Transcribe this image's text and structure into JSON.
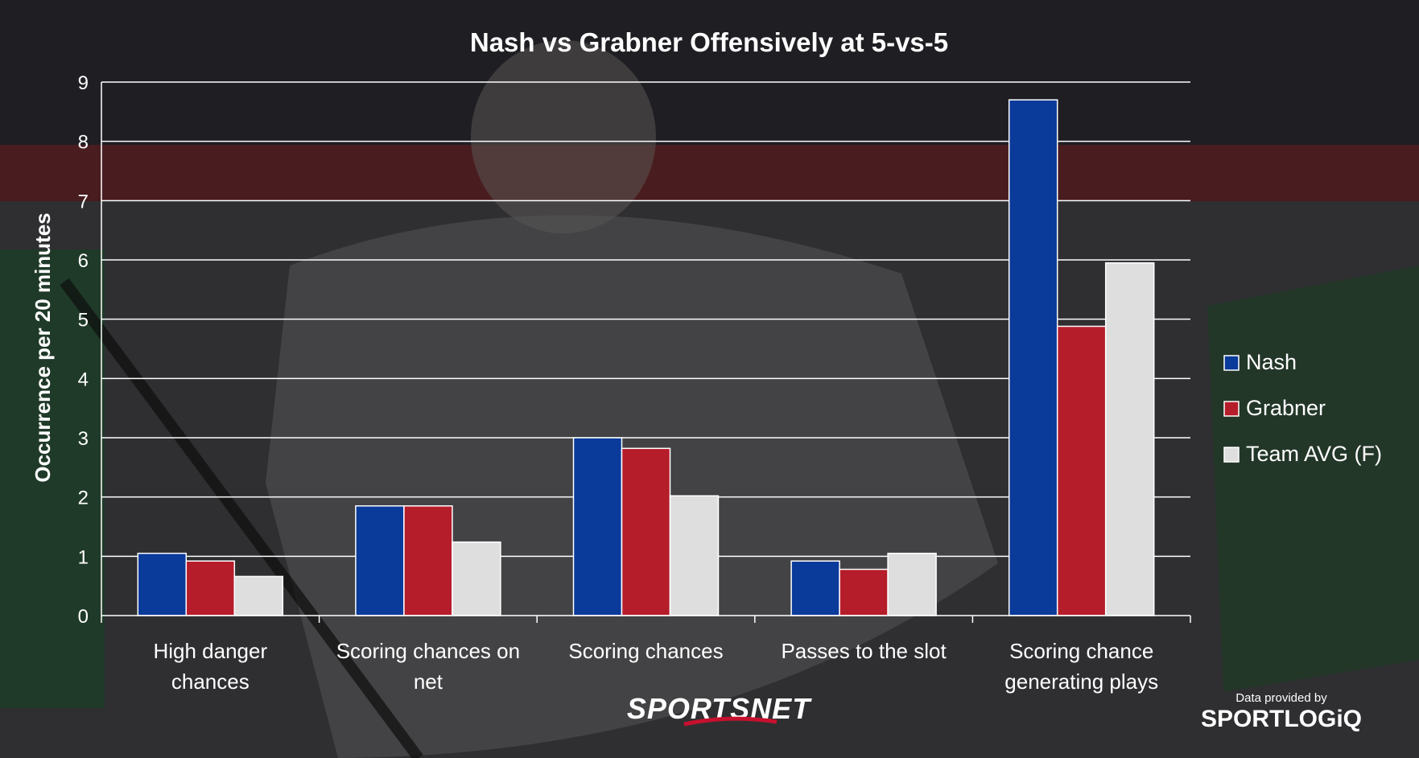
{
  "colors": {
    "nash": "#0a3a9a",
    "grabner": "#b51d2b",
    "team_avg": "#dedede",
    "grid": "#ffffff",
    "text": "#ffffff"
  },
  "branding": {
    "broadcaster": "SPORTSNET",
    "data_credit": "Data provided by",
    "data_provider": "SPORTLOGiQ"
  },
  "chart_data": {
    "type": "bar",
    "title": "Nash vs Grabner Offensively at 5-vs-5",
    "xlabel": "",
    "ylabel": "Occurrence per 20 minutes",
    "ylim": [
      0,
      9
    ],
    "yticks": [
      0,
      1,
      2,
      3,
      4,
      5,
      6,
      7,
      8,
      9
    ],
    "grid": true,
    "legend_position": "right",
    "categories": [
      [
        "High danger",
        "chances"
      ],
      [
        "Scoring chances on",
        "net"
      ],
      [
        "Scoring chances"
      ],
      [
        "Passes to the slot"
      ],
      [
        "Scoring chance",
        "generating plays"
      ]
    ],
    "series": [
      {
        "name": "Nash",
        "color": "#0a3a9a",
        "values": [
          1.05,
          1.85,
          3.0,
          0.92,
          8.7
        ]
      },
      {
        "name": "Grabner",
        "color": "#b51d2b",
        "values": [
          0.92,
          1.85,
          2.82,
          0.78,
          4.88
        ]
      },
      {
        "name": "Team AVG (F)",
        "color": "#dedede",
        "values": [
          0.66,
          1.24,
          2.02,
          1.05,
          5.95
        ]
      }
    ]
  }
}
